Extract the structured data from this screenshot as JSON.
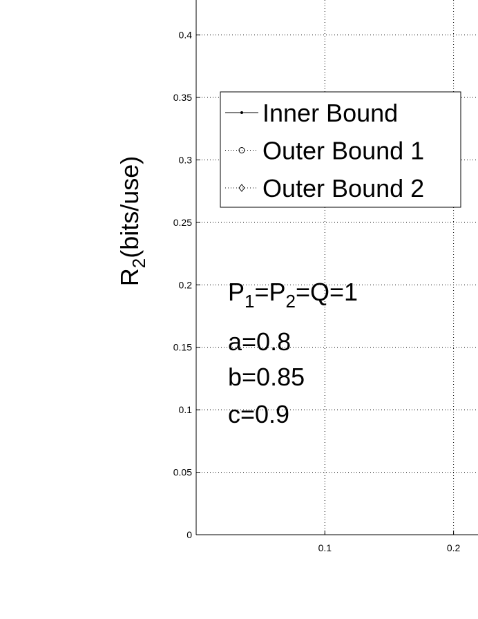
{
  "chart_data": {
    "type": "line",
    "ylabel": [
      "R",
      "2",
      "(bits/use)"
    ],
    "xlim": [
      0,
      0.219
    ],
    "ylim": [
      0,
      0.428
    ],
    "xticks": [
      0.1,
      0.2
    ],
    "yticks": [
      0,
      0.05,
      0.1,
      0.15,
      0.2,
      0.25,
      0.3,
      0.35,
      0.4
    ],
    "grid": true,
    "legend": "upper left",
    "series": [
      {
        "name": "Inner Bound",
        "color": "#000000",
        "marker": "dot",
        "linestyle": "solid",
        "x": [],
        "values": []
      },
      {
        "name": "Outer Bound 1",
        "color": "#000000",
        "marker": "circle",
        "linestyle": "dotted",
        "x": [],
        "values": []
      },
      {
        "name": "Outer Bound 2",
        "color": "#000000",
        "marker": "diamond",
        "linestyle": "dotted",
        "x": [],
        "values": []
      }
    ],
    "annotations": [
      [
        "P",
        "1",
        "=P",
        "2",
        "=Q=1"
      ],
      [
        "a=0.8"
      ],
      [
        "b=0.85"
      ],
      [
        "c=0.9"
      ]
    ]
  }
}
